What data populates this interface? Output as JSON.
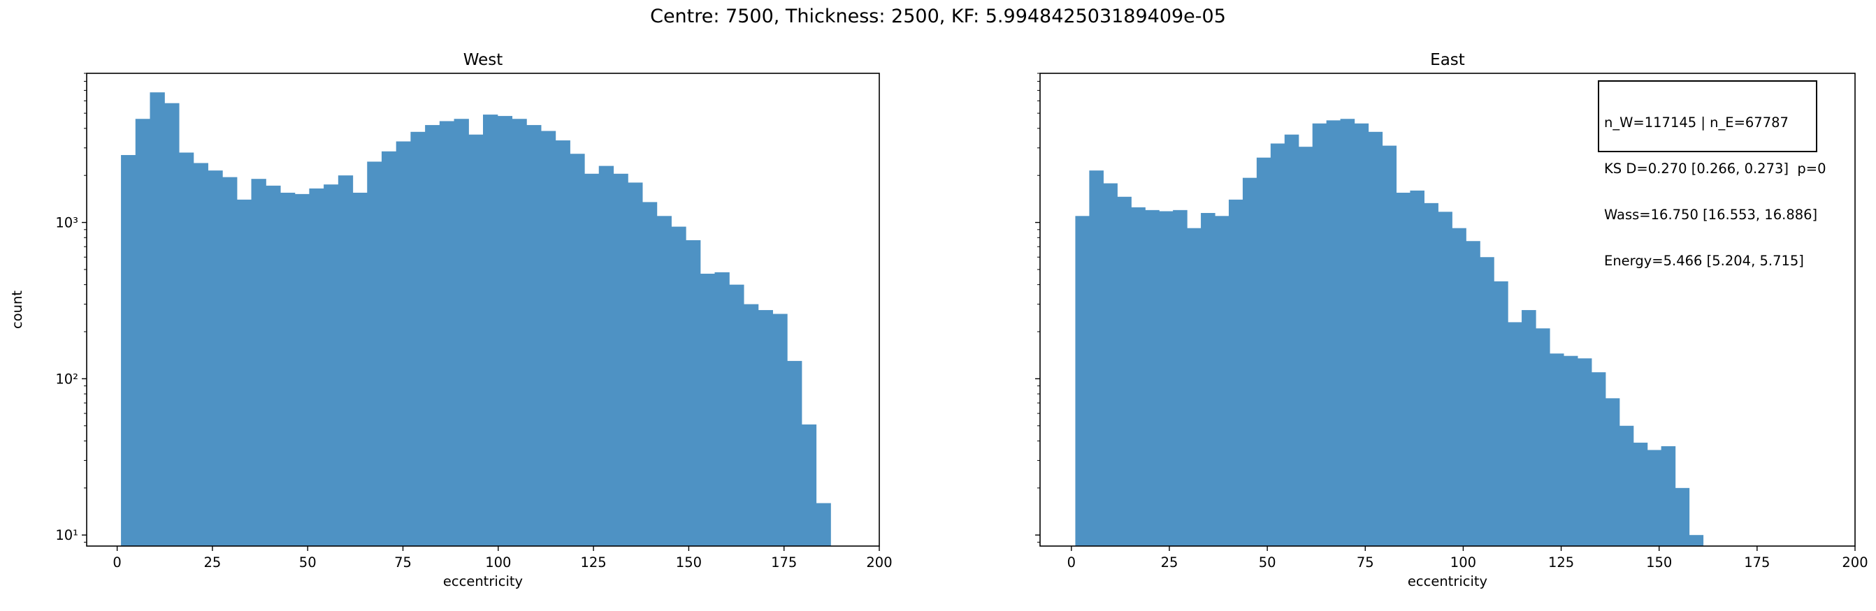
{
  "suptitle": "Centre: 7500, Thickness: 2500, KF: 5.994842503189409e-05",
  "color": "#4e92c4",
  "chart_data": [
    {
      "type": "bar",
      "title": "West",
      "xlabel": "eccentricity",
      "ylabel": "count",
      "yscale": "log",
      "xlim": [
        -8,
        200
      ],
      "ylim": [
        8.5,
        9000
      ],
      "xticks": [
        0,
        25,
        50,
        75,
        100,
        125,
        150,
        175,
        200
      ],
      "yticks": [
        10,
        100,
        1000
      ],
      "ytick_labels": [
        "10¹",
        "10²",
        "10³"
      ],
      "bin_start": 1,
      "bin_width": 3.8,
      "counts": [
        2700,
        4600,
        6800,
        5800,
        2800,
        2400,
        2150,
        1950,
        1400,
        1900,
        1720,
        1550,
        1520,
        1650,
        1750,
        2000,
        1550,
        2450,
        2850,
        3300,
        3800,
        4200,
        4450,
        4600,
        3650,
        4900,
        4800,
        4600,
        4200,
        3850,
        3350,
        2750,
        2050,
        2300,
        2050,
        1800,
        1350,
        1100,
        940,
        770,
        470,
        480,
        400,
        300,
        275,
        260,
        130,
        51,
        16
      ]
    },
    {
      "type": "bar",
      "title": "East",
      "xlabel": "eccentricity",
      "ylabel": "",
      "yscale": "log",
      "xlim": [
        -8,
        200
      ],
      "ylim": [
        8.5,
        9000
      ],
      "xticks": [
        0,
        25,
        50,
        75,
        100,
        125,
        150,
        175,
        200
      ],
      "yticks": [
        10,
        100,
        1000
      ],
      "ytick_labels": [
        "",
        "",
        ""
      ],
      "bin_start": 1,
      "bin_width": 3.56,
      "counts": [
        1100,
        2150,
        1780,
        1460,
        1250,
        1200,
        1180,
        1200,
        920,
        1150,
        1100,
        1400,
        1930,
        2600,
        3200,
        3650,
        3050,
        4300,
        4500,
        4600,
        4300,
        3800,
        3100,
        1550,
        1600,
        1330,
        1170,
        920,
        760,
        600,
        420,
        230,
        275,
        210,
        145,
        140,
        135,
        110,
        75,
        50,
        39,
        35,
        37,
        20,
        10
      ]
    }
  ],
  "annotation": {
    "lines": [
      "n_W=117145 | n_E=67787",
      "KS D=0.270 [0.266, 0.273]  p=0",
      "Wass=16.750 [16.553, 16.886]",
      "Energy=5.466 [5.204, 5.715]"
    ]
  }
}
